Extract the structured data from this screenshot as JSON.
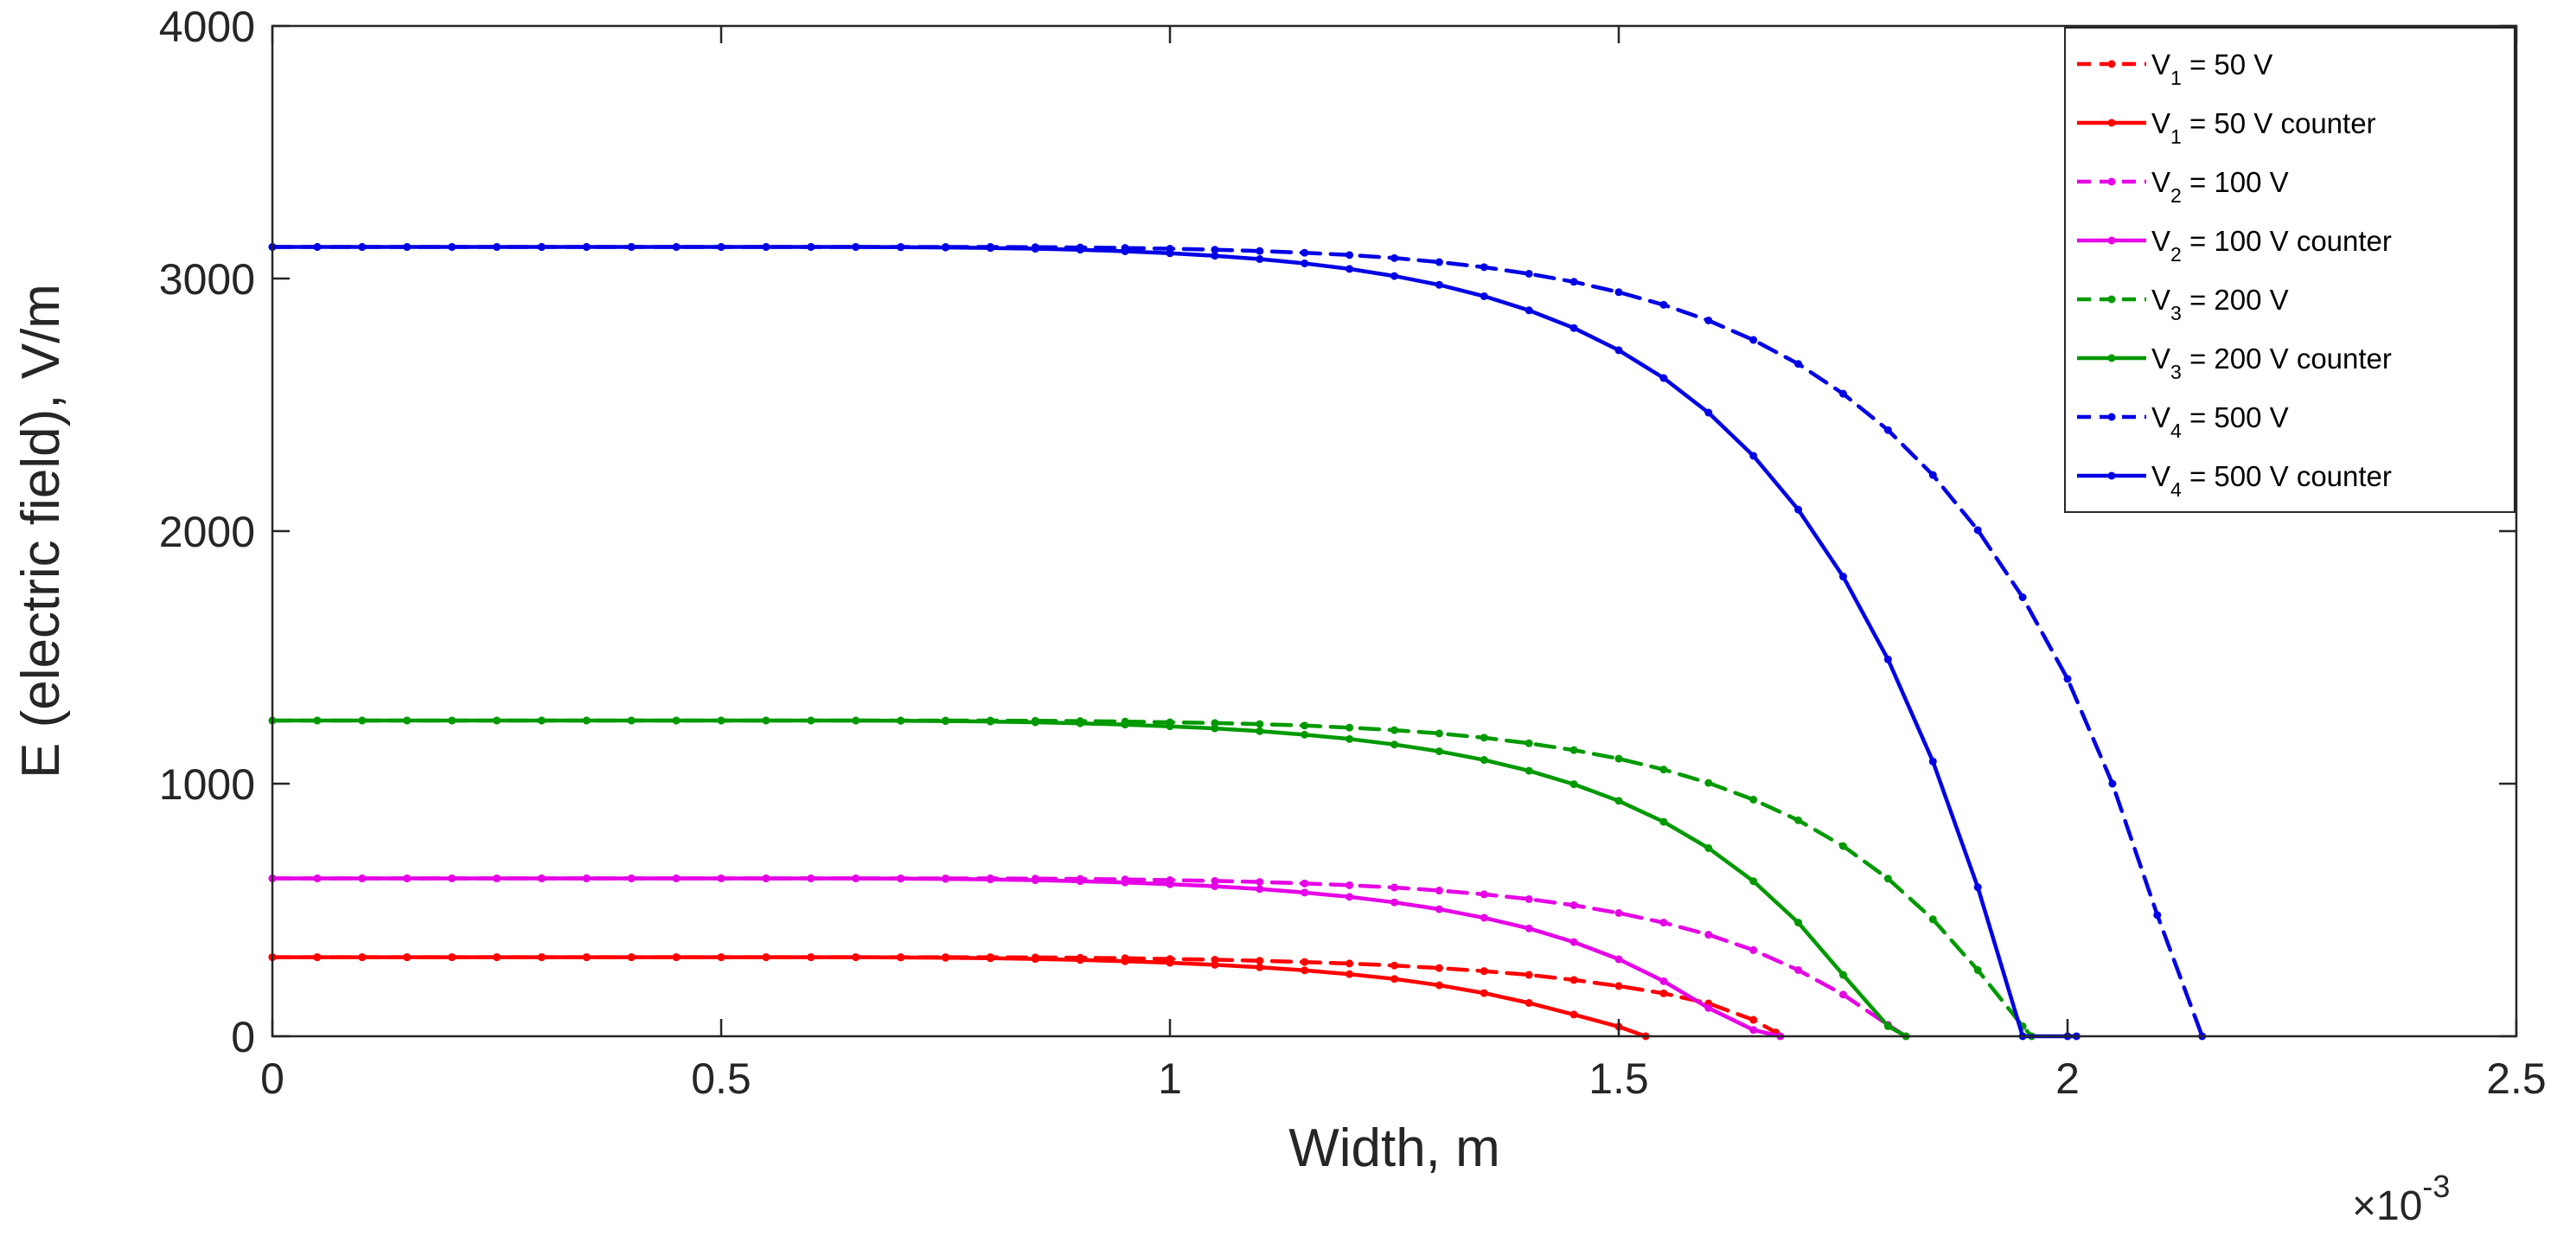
{
  "chart_data": {
    "type": "line",
    "title": "",
    "xlabel": "Width, m",
    "ylabel": "E (electric field), V/m",
    "x_exponent_label": "×10",
    "x_exponent_power": "-3",
    "xlim": [
      0,
      2.5
    ],
    "ylim": [
      0,
      4000
    ],
    "x_ticks": [
      0,
      0.5,
      1,
      1.5,
      2,
      2.5
    ],
    "x_tick_labels": [
      "0",
      "0.5",
      "1",
      "1.5",
      "2",
      "2.5"
    ],
    "y_ticks": [
      0,
      1000,
      2000,
      3000,
      4000
    ],
    "y_tick_labels": [
      "0",
      "1000",
      "2000",
      "3000",
      "4000"
    ],
    "grid": false,
    "legend_position": "top-right",
    "series": [
      {
        "name": "V1 = 50 V",
        "label_main": "V",
        "label_sub": "1",
        "label_rest": " = 50 V",
        "color": "#ff0000",
        "dashed": true,
        "x": [
          0,
          0.05,
          0.1,
          0.15,
          0.2,
          0.25,
          0.3,
          0.35,
          0.4,
          0.45,
          0.5,
          0.55,
          0.6,
          0.65,
          0.7,
          0.75,
          0.8,
          0.85,
          0.9,
          0.95,
          1.0,
          1.05,
          1.1,
          1.15,
          1.2,
          1.25,
          1.3,
          1.35,
          1.4,
          1.45,
          1.5,
          1.55,
          1.6,
          1.65,
          1.675
        ],
        "y": [
          313,
          313,
          313,
          313,
          313,
          313,
          313,
          313,
          313,
          313,
          313,
          313,
          313,
          313,
          313,
          313,
          313,
          312,
          311,
          309,
          306,
          303,
          299,
          294,
          288,
          280,
          270,
          258,
          243,
          223,
          199,
          170,
          130,
          65,
          15
        ]
      },
      {
        "name": "V1 = 50 V counter",
        "label_main": "V",
        "label_sub": "1",
        "label_rest": " =  50 V counter",
        "color": "#ff0000",
        "dashed": false,
        "x": [
          0,
          0.05,
          0.1,
          0.15,
          0.2,
          0.25,
          0.3,
          0.35,
          0.4,
          0.45,
          0.5,
          0.55,
          0.6,
          0.65,
          0.7,
          0.75,
          0.8,
          0.85,
          0.9,
          0.95,
          1.0,
          1.05,
          1.1,
          1.15,
          1.2,
          1.25,
          1.3,
          1.35,
          1.4,
          1.45,
          1.5,
          1.53
        ],
        "y": [
          313,
          313,
          313,
          313,
          313,
          313,
          313,
          313,
          313,
          313,
          313,
          313,
          313,
          313,
          312,
          311,
          309,
          306,
          302,
          297,
          291,
          283,
          273,
          261,
          246,
          227,
          202,
          171,
          132,
          86,
          38,
          0
        ]
      },
      {
        "name": "V2 = 100 V",
        "label_main": "V",
        "label_sub": "2",
        "label_rest": " = 100 V",
        "color": "#e600e6",
        "dashed": true,
        "x": [
          0,
          0.05,
          0.1,
          0.15,
          0.2,
          0.25,
          0.3,
          0.35,
          0.4,
          0.45,
          0.5,
          0.55,
          0.6,
          0.65,
          0.7,
          0.75,
          0.8,
          0.85,
          0.9,
          0.95,
          1.0,
          1.05,
          1.1,
          1.15,
          1.2,
          1.25,
          1.3,
          1.35,
          1.4,
          1.45,
          1.5,
          1.55,
          1.6,
          1.65,
          1.7,
          1.75,
          1.8,
          1.82
        ],
        "y": [
          625,
          625,
          625,
          625,
          625,
          625,
          625,
          625,
          625,
          625,
          625,
          625,
          625,
          625,
          625,
          625,
          625,
          624,
          623,
          621,
          618,
          615,
          611,
          605,
          598,
          589,
          577,
          562,
          543,
          519,
          488,
          450,
          402,
          341,
          262,
          165,
          45,
          0
        ]
      },
      {
        "name": "V2 = 100 V counter",
        "label_main": "V",
        "label_sub": "2",
        "label_rest": " =  100 V counter",
        "color": "#e600e6",
        "dashed": false,
        "x": [
          0,
          0.05,
          0.1,
          0.15,
          0.2,
          0.25,
          0.3,
          0.35,
          0.4,
          0.45,
          0.5,
          0.55,
          0.6,
          0.65,
          0.7,
          0.75,
          0.8,
          0.85,
          0.9,
          0.95,
          1.0,
          1.05,
          1.1,
          1.15,
          1.2,
          1.25,
          1.3,
          1.35,
          1.4,
          1.45,
          1.5,
          1.55,
          1.6,
          1.65,
          1.68
        ],
        "y": [
          625,
          625,
          625,
          625,
          625,
          625,
          625,
          625,
          625,
          625,
          625,
          625,
          625,
          625,
          624,
          623,
          621,
          618,
          614,
          609,
          602,
          594,
          583,
          569,
          552,
          530,
          503,
          469,
          427,
          373,
          305,
          218,
          112,
          25,
          0
        ]
      },
      {
        "name": "V3 = 200 V",
        "label_main": "V",
        "label_sub": "3",
        "label_rest": " = 200 V",
        "color": "#009900",
        "dashed": true,
        "x": [
          0,
          0.05,
          0.1,
          0.15,
          0.2,
          0.25,
          0.3,
          0.35,
          0.4,
          0.45,
          0.5,
          0.55,
          0.6,
          0.65,
          0.7,
          0.75,
          0.8,
          0.85,
          0.9,
          0.95,
          1.0,
          1.05,
          1.1,
          1.15,
          1.2,
          1.25,
          1.3,
          1.35,
          1.4,
          1.45,
          1.5,
          1.55,
          1.6,
          1.65,
          1.7,
          1.75,
          1.8,
          1.85,
          1.9,
          1.95,
          1.96
        ],
        "y": [
          1250,
          1250,
          1250,
          1250,
          1250,
          1250,
          1250,
          1250,
          1250,
          1250,
          1250,
          1250,
          1250,
          1250,
          1250,
          1250,
          1250,
          1249,
          1248,
          1246,
          1243,
          1240,
          1236,
          1230,
          1222,
          1212,
          1199,
          1182,
          1160,
          1133,
          1099,
          1056,
          1003,
          937,
          855,
          753,
          624,
          463,
          262,
          40,
          0
        ]
      },
      {
        "name": "V3 = 200 V counter",
        "label_main": "V",
        "label_sub": "3",
        "label_rest": " =  200 V counter",
        "color": "#009900",
        "dashed": false,
        "x": [
          0,
          0.05,
          0.1,
          0.15,
          0.2,
          0.25,
          0.3,
          0.35,
          0.4,
          0.45,
          0.5,
          0.55,
          0.6,
          0.65,
          0.7,
          0.75,
          0.8,
          0.85,
          0.9,
          0.95,
          1.0,
          1.05,
          1.1,
          1.15,
          1.2,
          1.25,
          1.3,
          1.35,
          1.4,
          1.45,
          1.5,
          1.55,
          1.6,
          1.65,
          1.7,
          1.75,
          1.8,
          1.82
        ],
        "y": [
          1250,
          1250,
          1250,
          1250,
          1250,
          1250,
          1250,
          1250,
          1250,
          1250,
          1250,
          1250,
          1250,
          1250,
          1249,
          1248,
          1246,
          1243,
          1239,
          1234,
          1227,
          1219,
          1208,
          1194,
          1177,
          1155,
          1128,
          1094,
          1051,
          998,
          932,
          849,
          745,
          614,
          450,
          243,
          40,
          0
        ]
      },
      {
        "name": "V4 = 500 V",
        "label_main": "V",
        "label_sub": "4",
        "label_rest": " = 500 V",
        "color": "#0000e6",
        "dashed": true,
        "x": [
          0,
          0.05,
          0.1,
          0.15,
          0.2,
          0.25,
          0.3,
          0.35,
          0.4,
          0.45,
          0.5,
          0.55,
          0.6,
          0.65,
          0.7,
          0.75,
          0.8,
          0.85,
          0.9,
          0.95,
          1.0,
          1.05,
          1.1,
          1.15,
          1.2,
          1.25,
          1.3,
          1.35,
          1.4,
          1.45,
          1.5,
          1.55,
          1.6,
          1.65,
          1.7,
          1.75,
          1.8,
          1.85,
          1.9,
          1.95,
          2.0,
          2.05,
          2.1,
          2.15
        ],
        "y": [
          3125,
          3125,
          3125,
          3125,
          3125,
          3125,
          3125,
          3125,
          3125,
          3125,
          3125,
          3125,
          3125,
          3125,
          3125,
          3125,
          3125,
          3124,
          3123,
          3121,
          3118,
          3114,
          3109,
          3102,
          3093,
          3081,
          3065,
          3045,
          3019,
          2987,
          2946,
          2896,
          2834,
          2757,
          2662,
          2544,
          2400,
          2222,
          2004,
          1738,
          1415,
          1000,
          480,
          0
        ]
      },
      {
        "name": "V4 = 500 V counter",
        "label_main": "V",
        "label_sub": "4",
        "label_rest": " =  500 V counter",
        "color": "#0000e6",
        "dashed": false,
        "x": [
          0,
          0.05,
          0.1,
          0.15,
          0.2,
          0.25,
          0.3,
          0.35,
          0.4,
          0.45,
          0.5,
          0.55,
          0.6,
          0.65,
          0.7,
          0.75,
          0.8,
          0.85,
          0.9,
          0.95,
          1.0,
          1.05,
          1.1,
          1.15,
          1.2,
          1.25,
          1.3,
          1.35,
          1.4,
          1.45,
          1.5,
          1.55,
          1.6,
          1.65,
          1.7,
          1.75,
          1.8,
          1.85,
          1.9,
          1.95,
          2.0,
          2.01
        ],
        "y": [
          3125,
          3125,
          3125,
          3125,
          3125,
          3125,
          3125,
          3125,
          3125,
          3125,
          3125,
          3125,
          3125,
          3125,
          3124,
          3123,
          3121,
          3118,
          3114,
          3108,
          3100,
          3090,
          3077,
          3060,
          3038,
          3010,
          2975,
          2930,
          2874,
          2804,
          2716,
          2606,
          2469,
          2298,
          2085,
          1820,
          1492,
          1088,
          590,
          0,
          0,
          0
        ]
      }
    ]
  }
}
